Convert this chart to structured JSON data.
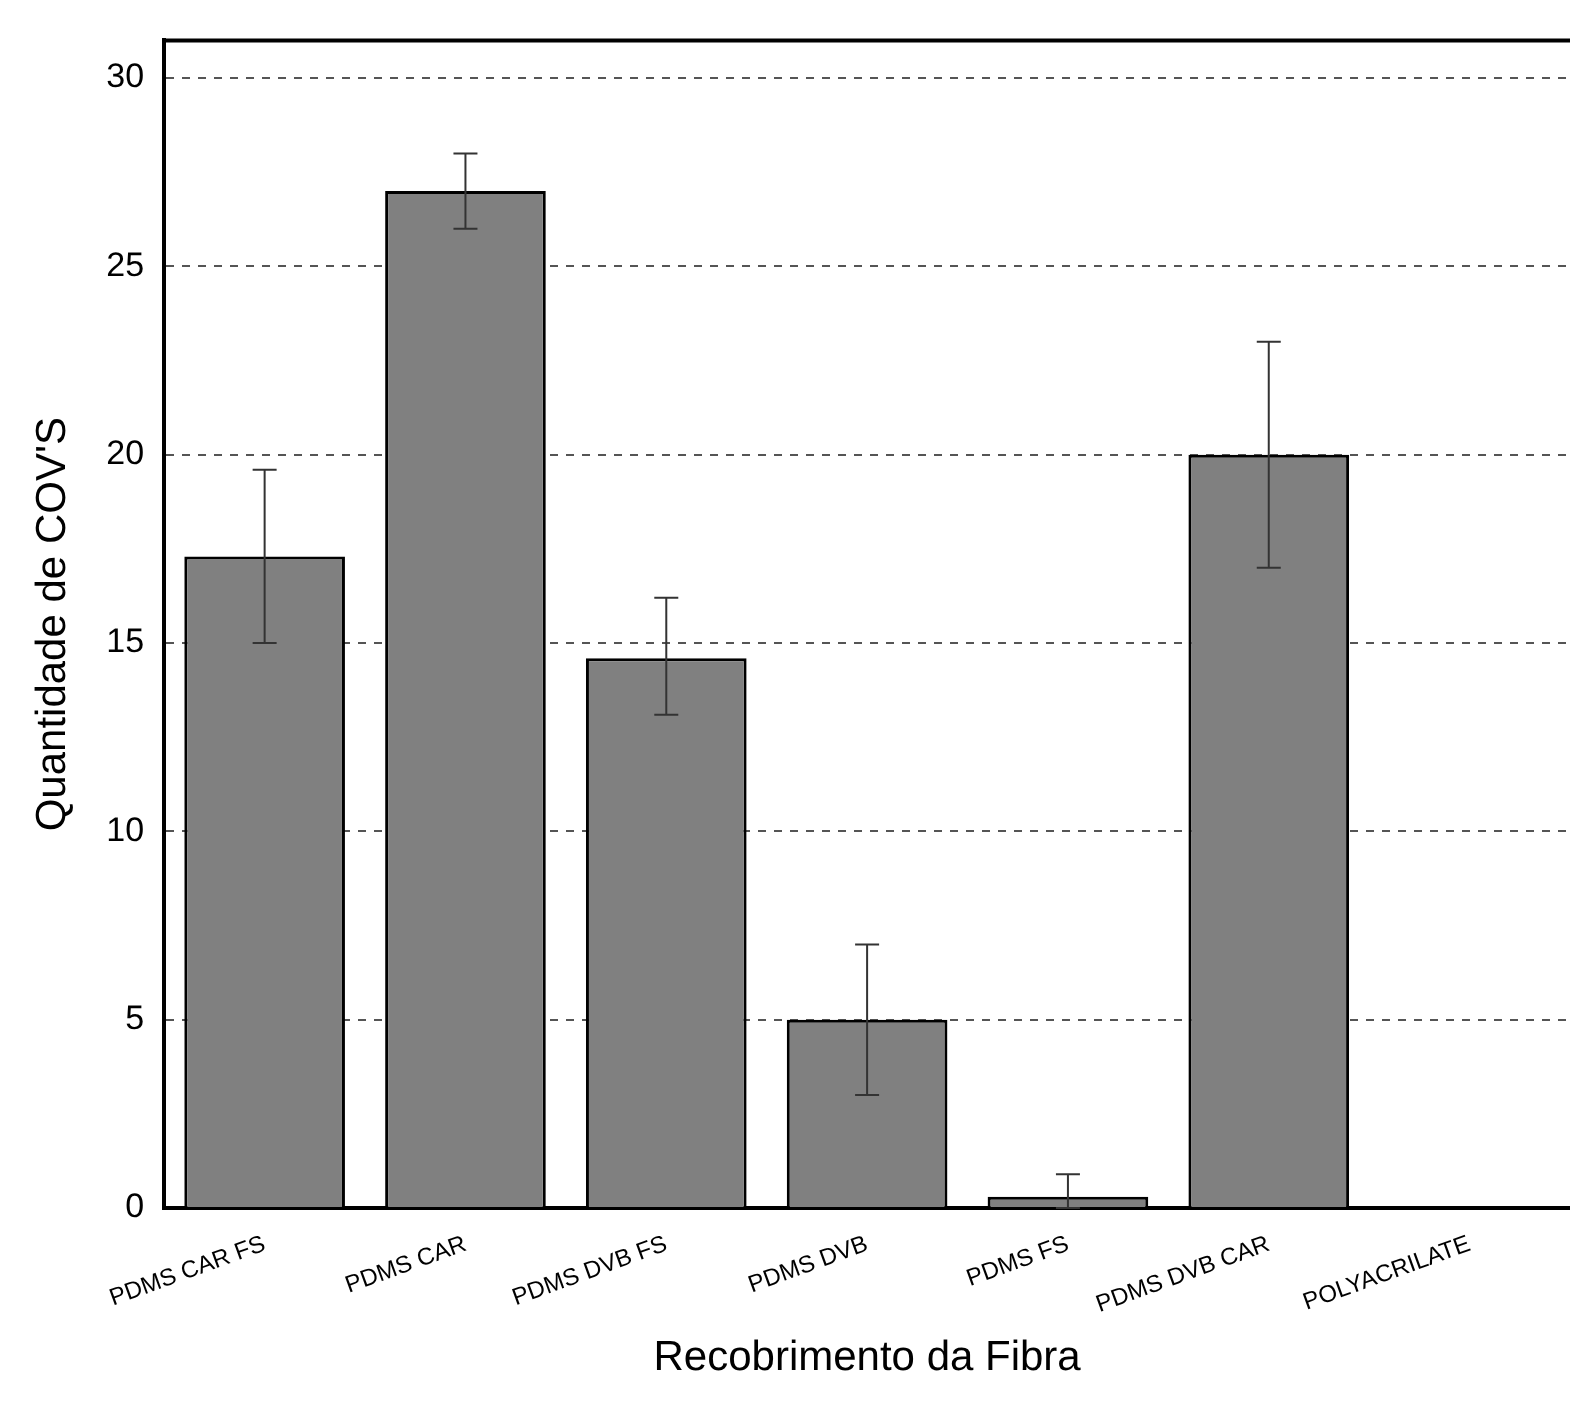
{
  "chart_data": {
    "type": "bar",
    "xlabel": "Recobrimento da Fibra",
    "ylabel": "Quantidade de COV'S",
    "categories": [
      "PDMS CAR FS",
      "PDMS CAR",
      "PDMS DVB FS",
      "PDMS DVB",
      "PDMS FS",
      "PDMS DVB CAR",
      "POLYACRILATE"
    ],
    "values": [
      17.3,
      27,
      14.6,
      5,
      0.3,
      20,
      0
    ],
    "errors": [
      [
        15,
        19.6
      ],
      [
        26,
        28
      ],
      [
        13.1,
        16.2
      ],
      [
        3,
        7
      ],
      [
        0,
        0.9
      ],
      [
        17,
        23
      ],
      null
    ],
    "color": "#808080",
    "ylim": [
      0,
      31
    ],
    "yticks": [
      0,
      5,
      10,
      15,
      20,
      25,
      30
    ],
    "grid": "y"
  }
}
